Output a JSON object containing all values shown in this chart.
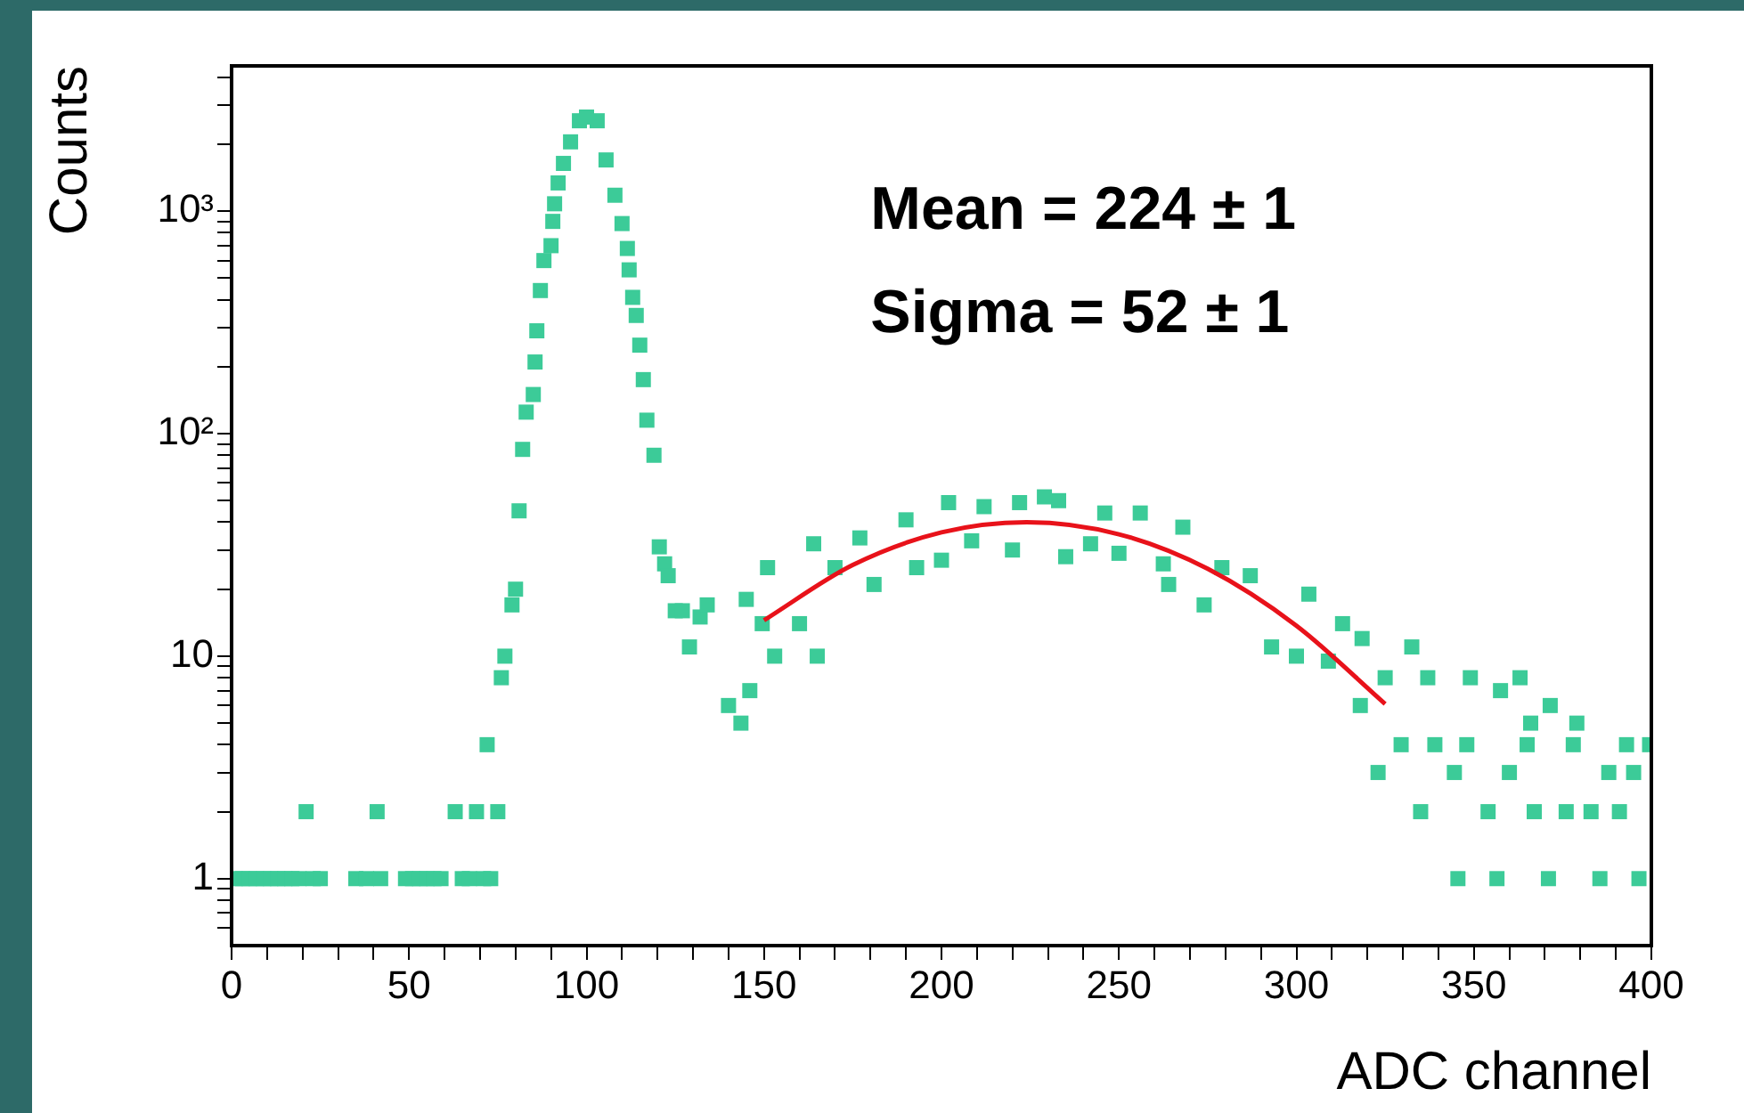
{
  "chart_data": {
    "type": "scatter",
    "xlabel": "ADC channel",
    "ylabel": "Counts",
    "annotations": [
      "Mean = 224 ± 1",
      "Sigma = 52 ± 1"
    ],
    "log": "y",
    "marker": "square",
    "xlim": [
      0,
      400
    ],
    "xticks": [
      0,
      {
        "value": 10,
        "label": null
      },
      {
        "value": 20,
        "label": null
      },
      {
        "value": 30,
        "label": null
      },
      {
        "value": 40,
        "label": null
      },
      50,
      {
        "value": 60,
        "label": null
      },
      {
        "value": 70,
        "label": null
      },
      {
        "value": 80,
        "label": null
      },
      {
        "value": 90,
        "label": null
      },
      100,
      {
        "value": 110,
        "label": null
      },
      {
        "value": 120,
        "label": null
      },
      {
        "value": 130,
        "label": null
      },
      {
        "value": 140,
        "label": null
      },
      150,
      {
        "value": 160,
        "label": null
      },
      {
        "value": 170,
        "label": null
      },
      {
        "value": 180,
        "label": null
      },
      {
        "value": 190,
        "label": null
      },
      200,
      {
        "value": 210,
        "label": null
      },
      {
        "value": 220,
        "label": null
      },
      {
        "value": 230,
        "label": null
      },
      {
        "value": 240,
        "label": null
      },
      250,
      {
        "value": 260,
        "label": null
      },
      {
        "value": 270,
        "label": null
      },
      {
        "value": 280,
        "label": null
      },
      {
        "value": 290,
        "label": null
      },
      300,
      {
        "value": 310,
        "label": null
      },
      {
        "value": 320,
        "label": null
      },
      {
        "value": 330,
        "label": null
      },
      {
        "value": 340,
        "label": null
      },
      350,
      {
        "value": 360,
        "label": null
      },
      {
        "value": 370,
        "label": null
      },
      {
        "value": 380,
        "label": null
      },
      {
        "value": 390,
        "label": null
      },
      400
    ],
    "ylim": [
      0.5,
      4500
    ],
    "yticks": [
      {
        "value": 0.6,
        "label": null
      },
      {
        "value": 0.7,
        "label": null
      },
      {
        "value": 0.8,
        "label": null
      },
      {
        "value": 0.9,
        "label": null
      },
      1,
      {
        "value": 2,
        "label": null
      },
      {
        "value": 3,
        "label": null
      },
      {
        "value": 4,
        "label": null
      },
      {
        "value": 5,
        "label": null
      },
      {
        "value": 6,
        "label": null
      },
      {
        "value": 7,
        "label": null
      },
      {
        "value": 8,
        "label": null
      },
      {
        "value": 9,
        "label": null
      },
      10,
      {
        "value": 20,
        "label": null
      },
      {
        "value": 30,
        "label": null
      },
      {
        "value": 40,
        "label": null
      },
      {
        "value": 50,
        "label": null
      },
      {
        "value": 60,
        "label": null
      },
      {
        "value": 70,
        "label": null
      },
      {
        "value": 80,
        "label": null
      },
      {
        "value": 90,
        "label": null
      },
      {
        "value": 100,
        "label": "10²"
      },
      {
        "value": 200,
        "label": null
      },
      {
        "value": 300,
        "label": null
      },
      {
        "value": 400,
        "label": null
      },
      {
        "value": 500,
        "label": null
      },
      {
        "value": 600,
        "label": null
      },
      {
        "value": 700,
        "label": null
      },
      {
        "value": 800,
        "label": null
      },
      {
        "value": 900,
        "label": null
      },
      {
        "value": 1000,
        "label": "10³"
      },
      {
        "value": 2000,
        "label": null
      },
      {
        "value": 3000,
        "label": null
      },
      {
        "value": 4000,
        "label": null
      }
    ],
    "series": [
      {
        "color": "#3ccb98",
        "x": [
          1,
          3,
          5,
          7,
          9,
          11,
          13,
          15,
          17,
          19,
          21,
          23,
          25,
          35,
          38,
          41,
          42,
          49,
          51,
          53,
          55,
          57,
          59,
          63,
          65,
          67,
          69,
          71,
          72,
          73,
          75,
          76,
          77,
          79,
          80,
          81,
          82,
          83,
          85,
          85.5,
          86,
          87,
          88,
          90,
          90.5,
          91,
          92,
          93.5,
          95.5,
          98,
          100,
          103,
          105.5,
          108,
          110,
          111.5,
          112,
          113,
          114,
          115,
          116,
          117,
          119,
          120.5,
          122,
          123,
          125,
          127,
          129,
          132,
          134,
          140,
          143.5,
          145,
          146,
          149.5,
          151,
          153,
          160,
          164,
          165,
          170,
          177,
          181,
          190,
          193,
          200,
          202,
          208.5,
          212,
          220,
          222,
          229,
          233,
          235,
          242,
          246,
          250,
          256,
          262.5,
          264,
          268,
          274,
          279,
          287,
          293,
          300,
          303.5,
          309,
          313,
          318,
          318.5,
          323,
          325,
          329.5,
          332.5,
          335,
          337,
          339,
          344.5,
          345.5,
          348,
          349,
          354,
          356.5,
          357.5,
          360,
          363,
          365,
          366,
          367,
          371,
          371.5,
          376,
          378,
          379,
          383,
          385.5,
          388,
          391,
          393,
          395,
          396.5,
          399.5
        ],
        "values": [
          1,
          1,
          1,
          1,
          1,
          1,
          1,
          1,
          1,
          1,
          2,
          1,
          1,
          1,
          1,
          2,
          1,
          1,
          1,
          1,
          1,
          1,
          1,
          2,
          1,
          1,
          2,
          1,
          4,
          1,
          2,
          8,
          10,
          17,
          20,
          45,
          85,
          125,
          150,
          210,
          290,
          440,
          600,
          700,
          900,
          1080,
          1340,
          1640,
          2050,
          2550,
          2650,
          2550,
          1700,
          1180,
          880,
          680,
          545,
          410,
          340,
          250,
          175,
          115,
          80,
          31,
          26,
          23,
          16,
          16,
          11,
          15,
          17,
          6,
          5,
          18,
          7,
          14,
          25,
          10,
          14,
          32,
          10,
          25,
          34,
          21,
          41,
          25,
          27,
          49,
          33,
          47,
          30,
          49,
          52,
          50,
          28,
          32,
          44,
          29,
          44,
          26,
          21,
          38,
          17,
          25,
          23,
          11,
          10,
          19,
          9.5,
          14,
          6,
          12,
          3,
          8,
          4,
          11,
          2,
          8,
          4,
          3,
          1,
          4,
          8,
          2,
          1,
          7,
          3,
          8,
          4,
          5,
          2,
          1,
          6,
          2,
          4,
          5,
          2,
          1,
          3,
          2,
          4,
          3,
          1,
          4
        ]
      },
      {
        "type": "line",
        "color": "#e8121a",
        "marker": "none",
        "x": [
          150,
          175,
          200,
          224,
          250,
          275,
          300,
          325
        ],
        "values": [
          14.5,
          25.7,
          36,
          40,
          35.3,
          24.7,
          13.7,
          6.1
        ]
      }
    ]
  }
}
